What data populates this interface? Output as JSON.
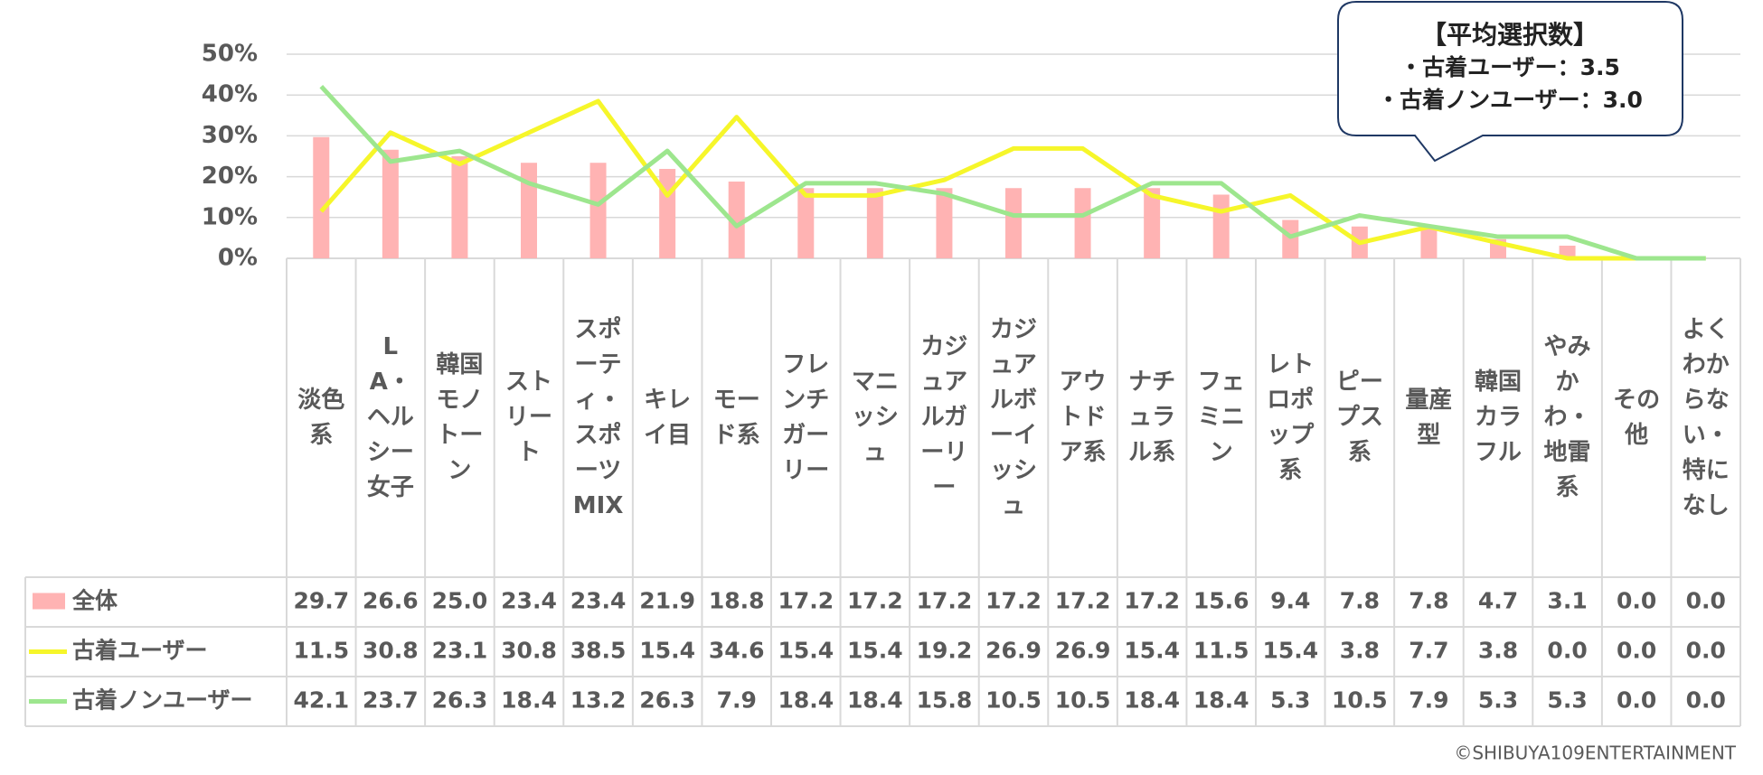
{
  "chart_data": {
    "type": "bar",
    "categories": [
      "淡色系",
      "LA・ヘルシー女子",
      "韓国モノトーン",
      "ストリート",
      "スポーティ・スポーツMIX",
      "キレイ目",
      "モード系",
      "フレンチガーリー",
      "マニッシュ",
      "カジュアルガーリー",
      "カジュアルボーイッシュ",
      "アウトドア系",
      "ナチュラル系",
      "フェミニン",
      "レトロポップ系",
      "ピープス系",
      "量産型",
      "韓国カラフル",
      "やみかわ・地雷系",
      "その他",
      "よくわからない・特になし"
    ],
    "series": [
      {
        "name": "全体",
        "type": "bar",
        "color": "#ffb3b3",
        "values": [
          29.7,
          26.6,
          25.0,
          23.4,
          23.4,
          21.9,
          18.8,
          17.2,
          17.2,
          17.2,
          17.2,
          17.2,
          17.2,
          15.6,
          9.4,
          7.8,
          7.8,
          4.7,
          3.1,
          0.0,
          0.0
        ],
        "value_labels": [
          "29.7",
          "26.6",
          "25.0",
          "23.4",
          "23.4",
          "21.9",
          "18.8",
          "17.2",
          "17.2",
          "17.2",
          "17.2",
          "17.2",
          "17.2",
          "15.6",
          "9.4",
          "7.8",
          "7.8",
          "4.7",
          "3.1",
          "0.0",
          "0.0"
        ]
      },
      {
        "name": "古着ユーザー",
        "type": "line",
        "color": "#f6f62a",
        "values": [
          11.5,
          30.8,
          23.1,
          30.8,
          38.5,
          15.4,
          34.6,
          15.4,
          15.4,
          19.2,
          26.9,
          26.9,
          15.4,
          11.5,
          15.4,
          3.8,
          7.7,
          3.8,
          0.0,
          0.0,
          0.0
        ],
        "value_labels": [
          "11.5",
          "30.8",
          "23.1",
          "30.8",
          "38.5",
          "15.4",
          "34.6",
          "15.4",
          "15.4",
          "19.2",
          "26.9",
          "26.9",
          "15.4",
          "11.5",
          "15.4",
          "3.8",
          "7.7",
          "3.8",
          "0.0",
          "0.0",
          "0.0"
        ]
      },
      {
        "name": "古着ノンユーザー",
        "type": "line",
        "color": "#9de68e",
        "values": [
          42.1,
          23.7,
          26.3,
          18.4,
          13.2,
          26.3,
          7.9,
          18.4,
          18.4,
          15.8,
          10.5,
          10.5,
          18.4,
          18.4,
          5.3,
          10.5,
          7.9,
          5.3,
          5.3,
          0.0,
          0.0
        ],
        "value_labels": [
          "42.1",
          "23.7",
          "26.3",
          "18.4",
          "13.2",
          "26.3",
          "7.9",
          "18.4",
          "18.4",
          "15.8",
          "10.5",
          "10.5",
          "18.4",
          "18.4",
          "5.3",
          "10.5",
          "7.9",
          "5.3",
          "5.3",
          "0.0",
          "0.0"
        ]
      }
    ],
    "ylim": [
      0,
      50
    ],
    "yticks": [
      {
        "value": 0,
        "label": "0%"
      },
      {
        "value": 10,
        "label": "10%"
      },
      {
        "value": 20,
        "label": "20%"
      },
      {
        "value": 30,
        "label": "30%"
      },
      {
        "value": 40,
        "label": "40%"
      },
      {
        "value": 50,
        "label": "50%"
      }
    ],
    "grid": true,
    "annotation": {
      "title": "【平均選択数】",
      "lines": [
        "・古着ユーザー：3.5",
        "・古着ノンユーザー：3.0"
      ]
    },
    "credit": "©SHIBUYA109ENTERTAINMENT"
  }
}
